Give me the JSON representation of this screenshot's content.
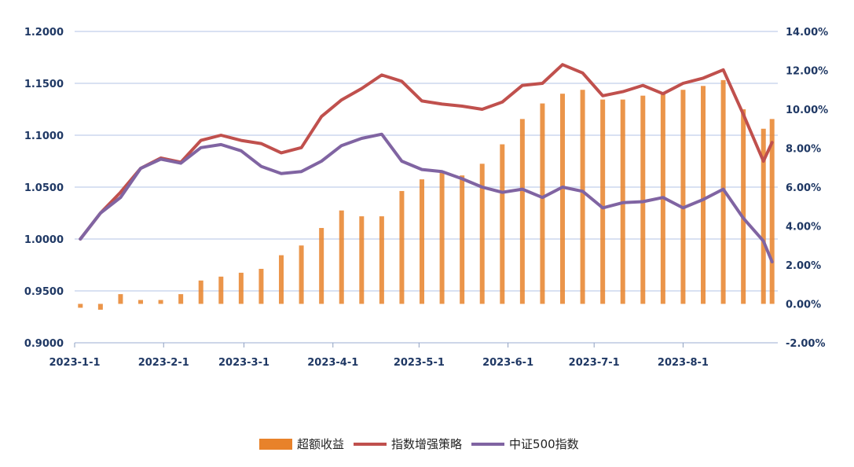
{
  "chart_data": {
    "type": "line+bar",
    "title": "",
    "x_dates": [
      "2023-01-03",
      "2023-01-10",
      "2023-01-17",
      "2023-01-24",
      "2023-01-31",
      "2023-02-07",
      "2023-02-14",
      "2023-02-21",
      "2023-02-28",
      "2023-03-07",
      "2023-03-14",
      "2023-03-21",
      "2023-03-28",
      "2023-04-04",
      "2023-04-11",
      "2023-04-18",
      "2023-04-25",
      "2023-05-02",
      "2023-05-09",
      "2023-05-16",
      "2023-05-23",
      "2023-05-30",
      "2023-06-06",
      "2023-06-13",
      "2023-06-20",
      "2023-06-27",
      "2023-07-04",
      "2023-07-11",
      "2023-07-18",
      "2023-07-25",
      "2023-08-01",
      "2023-08-08",
      "2023-08-15",
      "2023-08-22",
      "2023-08-29",
      "2023-09-01"
    ],
    "x_tick_labels": [
      "2023-1-1",
      "2023-2-1",
      "2023-3-1",
      "2023-4-1",
      "2023-5-1",
      "2023-6-1",
      "2023-7-1",
      "2023-8-1"
    ],
    "x_tick_dates": [
      "2023-01-01",
      "2023-02-01",
      "2023-03-01",
      "2023-04-01",
      "2023-05-01",
      "2023-06-01",
      "2023-07-01",
      "2023-08-01"
    ],
    "x_range": [
      "2023-01-01",
      "2023-09-03"
    ],
    "y_left": {
      "range": [
        0.9,
        1.2
      ],
      "ticks": [
        "0.9000",
        "0.9500",
        "1.0000",
        "1.0500",
        "1.1000",
        "1.1500",
        "1.2000"
      ]
    },
    "y_right": {
      "range": [
        -2,
        14
      ],
      "ticks": [
        "-2.00%",
        "0.00%",
        "2.00%",
        "4.00%",
        "6.00%",
        "8.00%",
        "10.00%",
        "12.00%",
        "14.00%"
      ]
    },
    "grid": true,
    "legend_position": "bottom-center",
    "series": [
      {
        "name": "超额收益",
        "kind": "bar",
        "axis": "right",
        "color": "#e8822a",
        "values": [
          -0.2,
          -0.3,
          0.5,
          0.2,
          0.2,
          0.5,
          1.2,
          1.4,
          1.6,
          1.8,
          2.5,
          3.0,
          3.9,
          4.8,
          4.5,
          4.5,
          5.8,
          6.4,
          6.8,
          6.6,
          7.2,
          8.2,
          9.5,
          10.3,
          10.8,
          11.0,
          10.5,
          10.5,
          10.7,
          10.8,
          11.0,
          11.2,
          11.5,
          10.0,
          9.0,
          9.5
        ]
      },
      {
        "name": "指数增强策略",
        "kind": "line",
        "axis": "left",
        "color": "#c0504d",
        "values": [
          1.0,
          1.025,
          1.045,
          1.068,
          1.078,
          1.074,
          1.095,
          1.1,
          1.095,
          1.092,
          1.083,
          1.088,
          1.118,
          1.134,
          1.145,
          1.158,
          1.152,
          1.133,
          1.13,
          1.128,
          1.125,
          1.132,
          1.148,
          1.15,
          1.168,
          1.16,
          1.138,
          1.142,
          1.148,
          1.14,
          1.15,
          1.155,
          1.163,
          1.12,
          1.075,
          1.093
        ]
      },
      {
        "name": "中证500指数",
        "kind": "line",
        "axis": "left",
        "color": "#8064a2",
        "values": [
          1.0,
          1.025,
          1.04,
          1.068,
          1.077,
          1.073,
          1.088,
          1.091,
          1.085,
          1.07,
          1.063,
          1.065,
          1.075,
          1.09,
          1.097,
          1.101,
          1.075,
          1.067,
          1.065,
          1.058,
          1.05,
          1.045,
          1.048,
          1.04,
          1.05,
          1.046,
          1.03,
          1.035,
          1.036,
          1.04,
          1.03,
          1.038,
          1.048,
          1.02,
          0.998,
          0.978
        ]
      }
    ]
  }
}
